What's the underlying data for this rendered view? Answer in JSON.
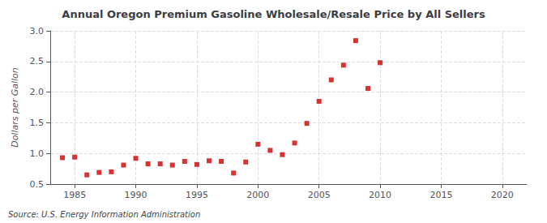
{
  "chart_data": {
    "type": "scatter",
    "title": "Annual Oregon Premium Gasoline Wholesale/Resale Price by All Sellers",
    "ylabel": "Dollars per Gallon",
    "annotation": "Source: U.S. Energy Information Administration",
    "x": [
      1984,
      1985,
      1986,
      1987,
      1988,
      1989,
      1990,
      1991,
      1992,
      1993,
      1994,
      1995,
      1996,
      1997,
      1998,
      1999,
      2000,
      2001,
      2002,
      2003,
      2004,
      2005,
      2006,
      2007,
      2008,
      2009,
      2010
    ],
    "values": [
      0.93,
      0.94,
      0.65,
      0.69,
      0.7,
      0.81,
      0.92,
      0.83,
      0.83,
      0.81,
      0.87,
      0.82,
      0.88,
      0.87,
      0.68,
      0.86,
      1.15,
      1.05,
      0.98,
      1.17,
      1.49,
      1.85,
      2.2,
      2.44,
      2.84,
      2.06,
      2.48
    ],
    "color": "#cc0000",
    "marker": "square",
    "xlim": [
      1983,
      2022
    ],
    "xticks": [
      1985,
      1990,
      1995,
      2000,
      2005,
      2010,
      2015,
      2020
    ],
    "ylim": [
      0.5,
      3.0
    ],
    "yticks": [
      0.5,
      {
        "value": 1.0,
        "label": "1.0"
      },
      1.5,
      {
        "value": 2.0,
        "label": "2.0"
      },
      2.5,
      {
        "value": 3.0,
        "label": "3.0"
      }
    ],
    "grid": true
  }
}
